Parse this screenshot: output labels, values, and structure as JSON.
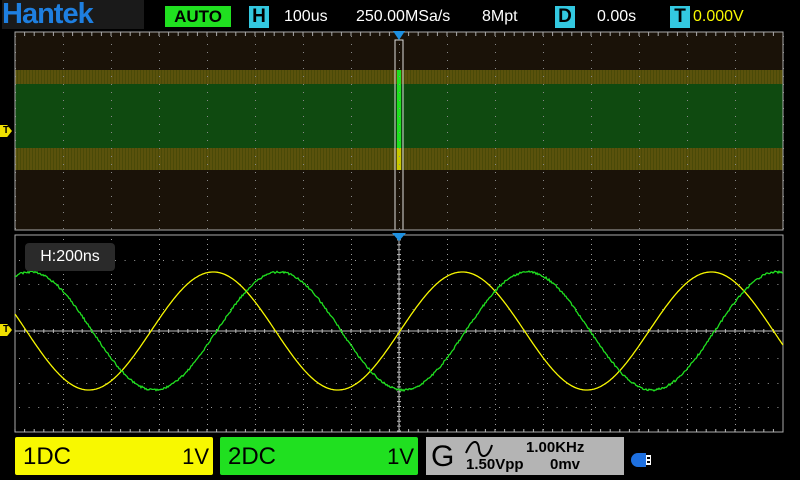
{
  "header": {
    "brand": "Hantek",
    "trigger_mode": "AUTO",
    "h_badge": "H",
    "timebase": "100us",
    "sample_rate": "250.00MSa/s",
    "memory_depth": "8Mpt",
    "d_badge": "D",
    "delay": "0.00s",
    "t_badge": "T",
    "trigger_level": "0.000V"
  },
  "zoom_window": {
    "label": "H:200ns"
  },
  "trigger_marker": "T",
  "channels": [
    {
      "label": "1DC",
      "scale": "1V",
      "color": "#f8f800"
    },
    {
      "label": "2DC",
      "scale": "1V",
      "color": "#20e020"
    }
  ],
  "generator": {
    "label": "G",
    "waveform_icon": "sine-wave-icon",
    "frequency": "1.00KHz",
    "amplitude": "1.50Vpp",
    "offset": "0mv"
  },
  "usb_icon": "usb-drive-icon",
  "colors": {
    "accent": "#33c8e0",
    "marker": "#1e90e0",
    "ch1": "#f8f800",
    "ch2": "#20e020"
  },
  "waveforms": [
    {
      "channel": 1,
      "amplitude_div": 2.4,
      "phase_deg": 0
    },
    {
      "channel": 2,
      "amplitude_div": 2.4,
      "phase_deg": -95
    }
  ]
}
